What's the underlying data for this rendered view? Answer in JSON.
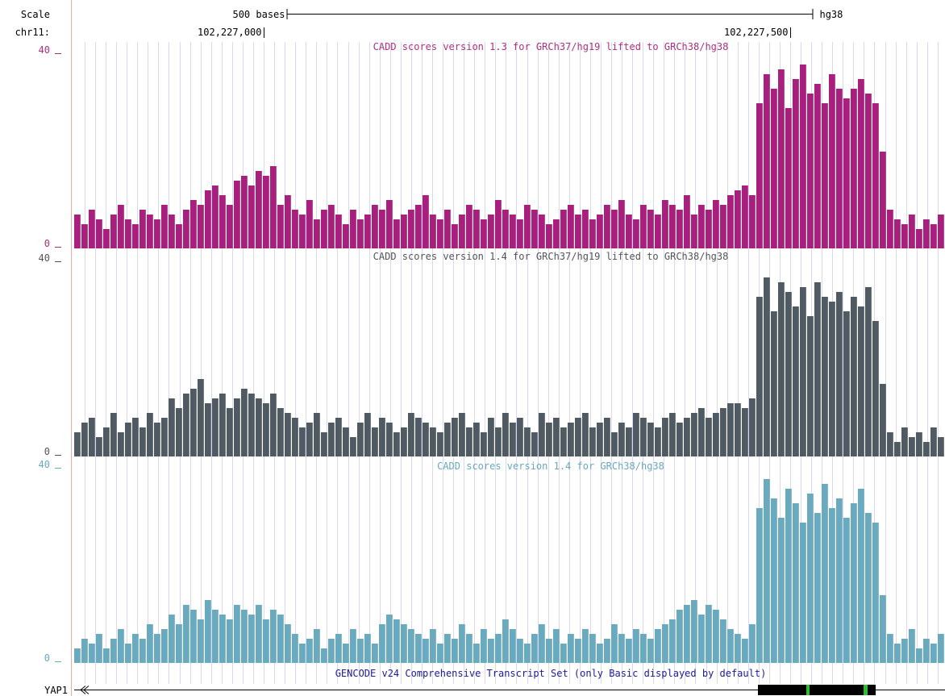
{
  "ruler": {
    "scale_label": "Scale",
    "chrom_label": "chr11:",
    "scale_bar": {
      "value": 500,
      "label": "500 bases"
    },
    "assembly": "hg38",
    "xlim": [
      102226820,
      102227647
    ],
    "xticks": [
      {
        "value": 102227000,
        "label": "102,227,000"
      },
      {
        "value": 102227500,
        "label": "102,227,500"
      }
    ]
  },
  "tracks": [
    {
      "title": "CADD scores version 1.3 for GRCh37/hg19 lifted to GRCh38/hg38",
      "color": "#a81f7d",
      "title_color": "#b0307f",
      "ylim": [
        0,
        40
      ],
      "yticks": [
        0,
        40
      ],
      "values": [
        7,
        5,
        8,
        6,
        4,
        7,
        9,
        6,
        5,
        8,
        7,
        6,
        9,
        7,
        5,
        8,
        10,
        9,
        12,
        13,
        11,
        9,
        14,
        15,
        13,
        16,
        15,
        17,
        9,
        11,
        8,
        7,
        10,
        6,
        8,
        9,
        7,
        5,
        8,
        6,
        7,
        9,
        8,
        10,
        6,
        7,
        8,
        9,
        11,
        7,
        6,
        8,
        5,
        7,
        9,
        8,
        6,
        7,
        10,
        8,
        7,
        6,
        9,
        8,
        7,
        5,
        6,
        8,
        9,
        7,
        8,
        6,
        7,
        9,
        8,
        10,
        7,
        6,
        9,
        8,
        7,
        10,
        9,
        8,
        11,
        7,
        9,
        8,
        10,
        9,
        11,
        12,
        13,
        11,
        30,
        36,
        33,
        37,
        29,
        35,
        38,
        32,
        34,
        30,
        36,
        33,
        31,
        33,
        35,
        32,
        30,
        20,
        8,
        6,
        5,
        7,
        4,
        6,
        5,
        7
      ]
    },
    {
      "title": "CADD scores version 1.4 for GRCh37/hg19 lifted to GRCh38/hg38",
      "color": "#505a62",
      "title_color": "#555555",
      "ylim": [
        0,
        40
      ],
      "yticks": [
        0,
        40
      ],
      "values": [
        5,
        7,
        8,
        4,
        6,
        9,
        5,
        7,
        8,
        6,
        9,
        7,
        8,
        12,
        10,
        13,
        14,
        16,
        11,
        12,
        13,
        10,
        12,
        14,
        13,
        12,
        11,
        13,
        10,
        9,
        8,
        6,
        7,
        9,
        5,
        7,
        8,
        6,
        4,
        7,
        9,
        6,
        8,
        7,
        5,
        6,
        9,
        8,
        7,
        6,
        5,
        7,
        8,
        9,
        6,
        7,
        5,
        8,
        6,
        9,
        7,
        8,
        6,
        5,
        9,
        7,
        8,
        6,
        7,
        8,
        9,
        6,
        7,
        8,
        5,
        7,
        6,
        9,
        8,
        7,
        6,
        8,
        9,
        7,
        8,
        9,
        10,
        8,
        9,
        10,
        11,
        11,
        10,
        12,
        33,
        37,
        30,
        36,
        34,
        31,
        35,
        29,
        36,
        33,
        32,
        34,
        30,
        33,
        31,
        35,
        28,
        15,
        5,
        3,
        6,
        4,
        5,
        3,
        6,
        4
      ]
    },
    {
      "title": "CADD scores version 1.4 for GRCh38/hg38",
      "color": "#6aaabf",
      "title_color": "#6aa8c0",
      "ylim": [
        0,
        40
      ],
      "yticks": [
        0,
        40
      ],
      "values": [
        3,
        5,
        4,
        6,
        3,
        5,
        7,
        4,
        6,
        5,
        8,
        6,
        7,
        10,
        8,
        12,
        11,
        9,
        13,
        11,
        10,
        9,
        12,
        11,
        10,
        12,
        9,
        11,
        10,
        8,
        6,
        4,
        5,
        7,
        3,
        5,
        6,
        4,
        7,
        5,
        6,
        4,
        8,
        10,
        9,
        8,
        7,
        6,
        5,
        7,
        4,
        6,
        5,
        8,
        6,
        4,
        7,
        5,
        6,
        9,
        7,
        5,
        4,
        6,
        8,
        5,
        7,
        4,
        6,
        5,
        7,
        6,
        4,
        5,
        8,
        6,
        5,
        7,
        6,
        5,
        7,
        8,
        9,
        11,
        12,
        13,
        10,
        12,
        11,
        9,
        7,
        6,
        5,
        8,
        32,
        38,
        34,
        30,
        36,
        33,
        29,
        35,
        31,
        37,
        32,
        34,
        30,
        33,
        36,
        31,
        29,
        14,
        6,
        4,
        5,
        7,
        3,
        5,
        4,
        6
      ]
    }
  ],
  "gene_track": {
    "title": "GENCODE v24 Comprehensive Transcript Set (only Basic displayed by default)",
    "gene": "YAP1"
  }
}
